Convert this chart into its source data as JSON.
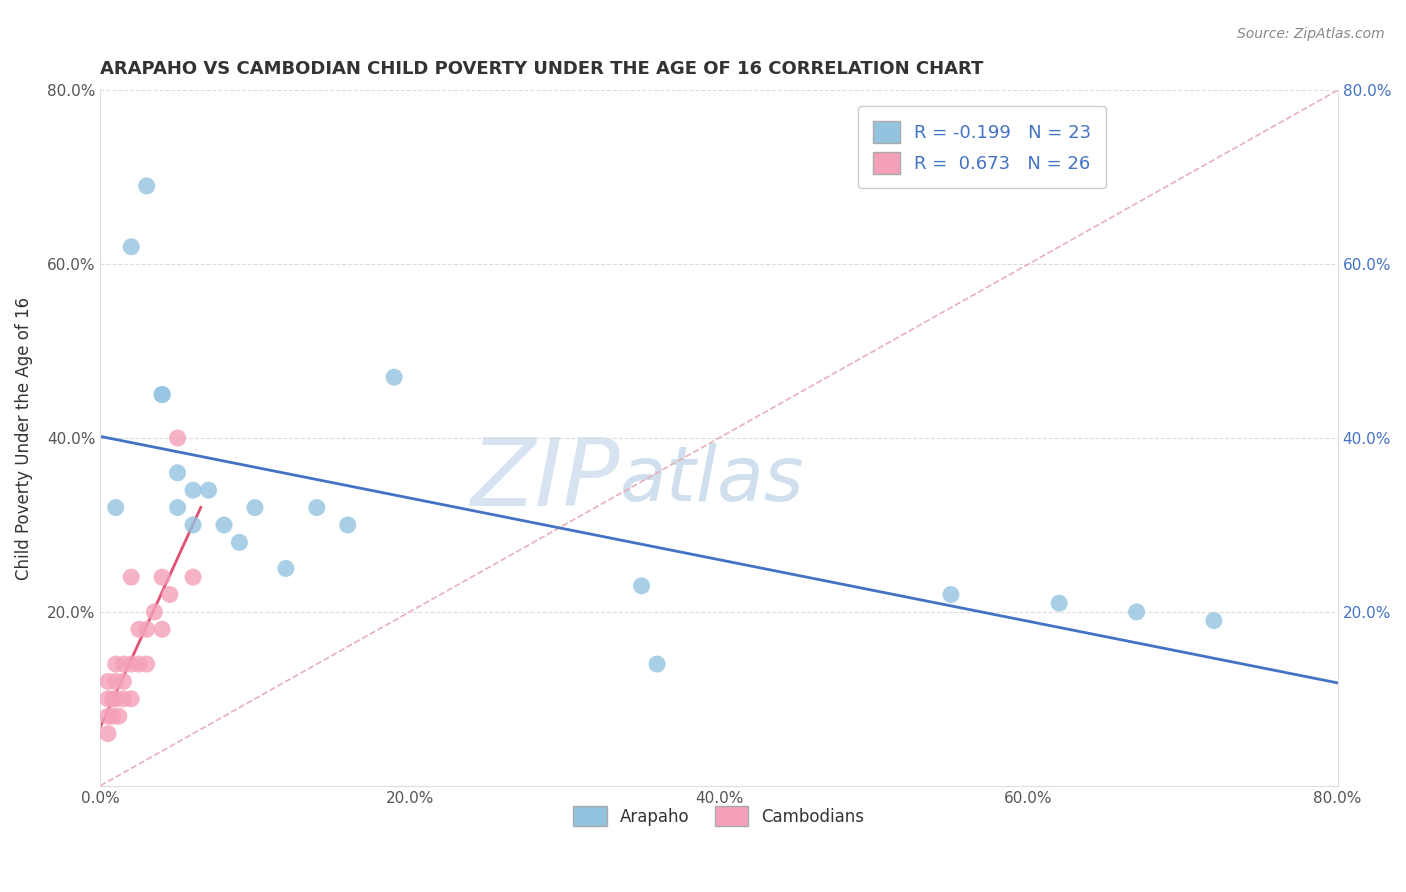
{
  "title": "ARAPAHO VS CAMBODIAN CHILD POVERTY UNDER THE AGE OF 16 CORRELATION CHART",
  "source": "Source: ZipAtlas.com",
  "ylabel": "Child Poverty Under the Age of 16",
  "xlim": [
    0.0,
    0.8
  ],
  "ylim": [
    0.0,
    0.8
  ],
  "xticks": [
    0.0,
    0.2,
    0.4,
    0.6,
    0.8
  ],
  "yticks": [
    0.2,
    0.4,
    0.6,
    0.8
  ],
  "right_yticks": [
    0.2,
    0.4,
    0.6,
    0.8
  ],
  "arapaho_color": "#94C3E0",
  "cambodian_color": "#F4A0B8",
  "arapaho_line_color": "#4472C4",
  "cambodian_line_color": "#E05070",
  "diagonal_color": "#E8B0B8",
  "legend_r_arapaho": "R = -0.199",
  "legend_n_arapaho": "N = 23",
  "legend_r_cambodian": "R =  0.673",
  "legend_n_cambodian": "N = 26",
  "arapaho_x": [
    0.01,
    0.02,
    0.03,
    0.04,
    0.04,
    0.05,
    0.05,
    0.06,
    0.06,
    0.07,
    0.08,
    0.09,
    0.1,
    0.12,
    0.14,
    0.16,
    0.19,
    0.35,
    0.36,
    0.55,
    0.62,
    0.67,
    0.72
  ],
  "arapaho_y": [
    0.32,
    0.62,
    0.69,
    0.45,
    0.45,
    0.36,
    0.32,
    0.34,
    0.3,
    0.34,
    0.3,
    0.28,
    0.32,
    0.25,
    0.32,
    0.3,
    0.47,
    0.23,
    0.14,
    0.22,
    0.21,
    0.2,
    0.19
  ],
  "cambodian_x": [
    0.005,
    0.005,
    0.005,
    0.005,
    0.008,
    0.008,
    0.01,
    0.01,
    0.01,
    0.012,
    0.015,
    0.015,
    0.015,
    0.02,
    0.02,
    0.02,
    0.025,
    0.025,
    0.03,
    0.03,
    0.035,
    0.04,
    0.04,
    0.045,
    0.05,
    0.06
  ],
  "cambodian_y": [
    0.06,
    0.08,
    0.1,
    0.12,
    0.08,
    0.1,
    0.1,
    0.12,
    0.14,
    0.08,
    0.1,
    0.12,
    0.14,
    0.1,
    0.14,
    0.24,
    0.14,
    0.18,
    0.14,
    0.18,
    0.2,
    0.18,
    0.24,
    0.22,
    0.4,
    0.24
  ]
}
